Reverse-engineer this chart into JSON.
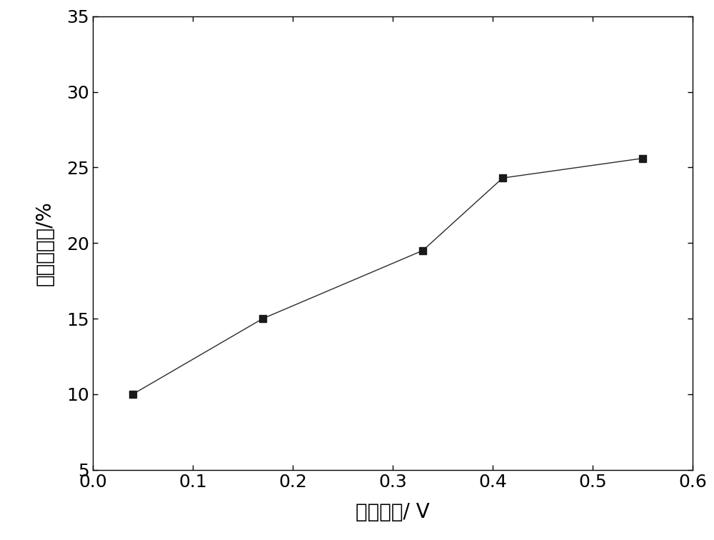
{
  "x": [
    0.04,
    0.17,
    0.33,
    0.41,
    0.55
  ],
  "y": [
    10.0,
    15.0,
    19.5,
    24.3,
    25.6
  ],
  "xlim": [
    0.0,
    0.6
  ],
  "ylim": [
    5,
    35
  ],
  "xticks": [
    0.0,
    0.1,
    0.2,
    0.3,
    0.4,
    0.5,
    0.6
  ],
  "yticks": [
    5,
    10,
    15,
    20,
    25,
    30,
    35
  ],
  "xlabel": "外加电压/ V",
  "ylabel": "氢气回收率/%",
  "marker": "s",
  "marker_size": 7,
  "line_color": "#2a2a2a",
  "marker_color": "#1a1a1a",
  "line_width": 1.0,
  "background_color": "#ffffff",
  "xlabel_fontsize": 20,
  "ylabel_fontsize": 20,
  "tick_fontsize": 18
}
